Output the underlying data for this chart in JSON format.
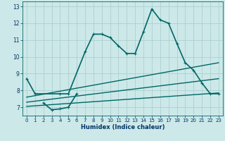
{
  "xlabel": "Humidex (Indice chaleur)",
  "background_color": "#cce8e8",
  "grid_color": "#a8cccc",
  "line_color": "#006666",
  "xlim": [
    -0.5,
    23.5
  ],
  "ylim": [
    6.5,
    13.3
  ],
  "xticks": [
    0,
    1,
    2,
    3,
    4,
    5,
    6,
    7,
    8,
    9,
    10,
    11,
    12,
    13,
    14,
    15,
    16,
    17,
    18,
    19,
    20,
    21,
    22,
    23
  ],
  "yticks": [
    7,
    8,
    9,
    10,
    11,
    12,
    13
  ],
  "series": [
    {
      "x": [
        0,
        1,
        4,
        5,
        7,
        8,
        9,
        10,
        11,
        12,
        13,
        14,
        15,
        16,
        17,
        18,
        19,
        20,
        21,
        22,
        23
      ],
      "y": [
        8.7,
        7.8,
        7.8,
        7.8,
        10.3,
        11.35,
        11.35,
        11.15,
        10.65,
        10.2,
        10.2,
        11.5,
        12.85,
        12.2,
        12.0,
        10.8,
        9.65,
        9.2,
        8.45,
        7.8,
        7.8
      ],
      "marker": true,
      "linewidth": 1.2,
      "markersize": 2.5
    },
    {
      "x": [
        2,
        3,
        4,
        5,
        6
      ],
      "y": [
        7.25,
        6.85,
        6.9,
        7.0,
        7.8
      ],
      "marker": true,
      "linewidth": 1.2,
      "markersize": 2.5
    },
    {
      "x": [
        0,
        23
      ],
      "y": [
        7.6,
        9.65
      ],
      "marker": false,
      "linewidth": 1.0,
      "markersize": 0
    },
    {
      "x": [
        0,
        23
      ],
      "y": [
        7.3,
        8.7
      ],
      "marker": false,
      "linewidth": 1.0,
      "markersize": 0
    },
    {
      "x": [
        0,
        23
      ],
      "y": [
        7.05,
        7.85
      ],
      "marker": false,
      "linewidth": 1.0,
      "markersize": 0
    }
  ]
}
